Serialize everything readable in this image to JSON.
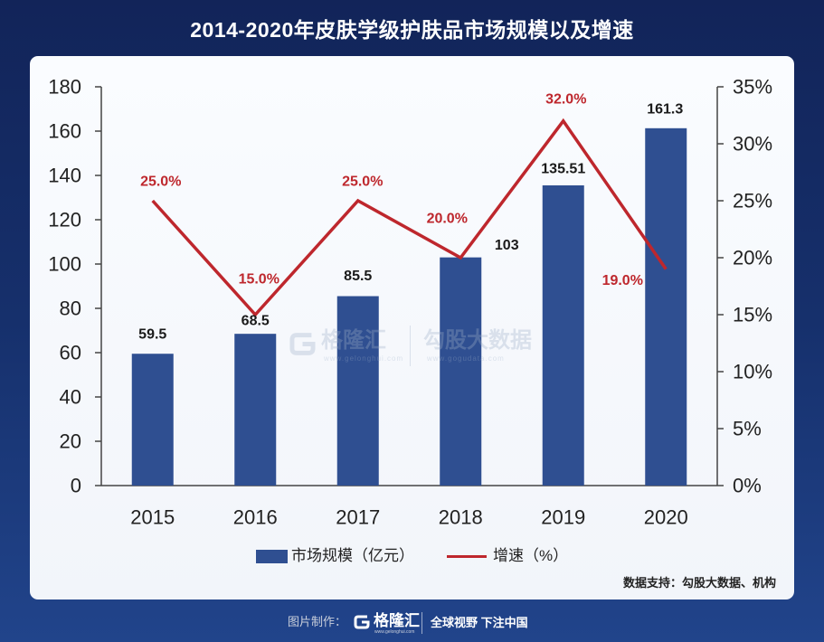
{
  "colors": {
    "bar": "#2f4f91",
    "line": "#be272d",
    "axis": "#444444",
    "tick_text": "#222222"
  },
  "chart_data": {
    "type": "bar",
    "title": "2014-2020年皮肤学级护肤品市场规模以及增速",
    "categories": [
      "2015",
      "2016",
      "2017",
      "2018",
      "2019",
      "2020"
    ],
    "series": [
      {
        "name": "市场规模（亿元）",
        "type": "bar",
        "axis": "left",
        "values": [
          59.5,
          68.5,
          85.5,
          103,
          135.51,
          161.3
        ],
        "labels": [
          "59.5",
          "68.5",
          "85.5",
          "103",
          "135.51",
          "161.3"
        ]
      },
      {
        "name": "增速（%）",
        "type": "line",
        "axis": "right",
        "values": [
          25.0,
          15.0,
          25.0,
          20.0,
          32.0,
          19.0
        ],
        "labels": [
          "25.0%",
          "15.0%",
          "25.0%",
          "20.0%",
          "32.0%",
          "19.0%"
        ]
      }
    ],
    "y_left": {
      "min": 0,
      "max": 180,
      "ticks": [
        "0",
        "20",
        "40",
        "60",
        "80",
        "100",
        "120",
        "140",
        "160",
        "180"
      ]
    },
    "y_right": {
      "min": 0,
      "max": 35,
      "ticks": [
        "0%",
        "5%",
        "10%",
        "15%",
        "20%",
        "25%",
        "30%",
        "35%"
      ]
    },
    "xlabel": "",
    "ylabel": "",
    "grid": false,
    "legend_position": "bottom"
  },
  "source": "数据支持：勾股大数据、机构",
  "watermark": {
    "left_name": "格隆汇",
    "left_url": "www.gelonghui.com",
    "right_name": "勾股大数据",
    "right_url": "www.gogudata.com"
  },
  "footer": {
    "made_by": "图片制作：",
    "logo_text": "格隆汇",
    "logo_url": "www.gelonghui.com",
    "slogan": "全球视野 下注中国"
  }
}
